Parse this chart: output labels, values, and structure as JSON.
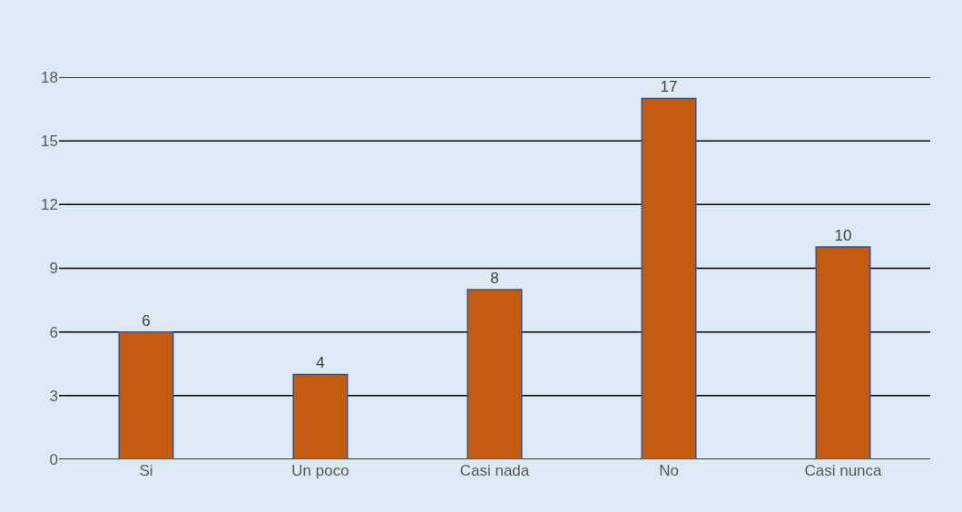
{
  "chart_data": {
    "type": "bar",
    "categories": [
      "Si",
      "Un poco",
      "Casi nada",
      "No",
      "Casi nunca"
    ],
    "values": [
      6,
      4,
      8,
      17,
      10
    ],
    "color": "#c55a11",
    "ylim": [
      0,
      18
    ],
    "yticks": [
      0,
      3,
      6,
      9,
      12,
      15,
      18
    ],
    "grid": "y",
    "data_labels": true
  }
}
